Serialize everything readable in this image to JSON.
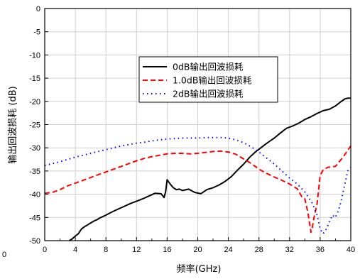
{
  "chart_data": {
    "type": "line",
    "xlabel": "频率(GHz)",
    "ylabel": "输出回波损耗 (dB)",
    "xlim": [
      0,
      40
    ],
    "ylim": [
      -50,
      0
    ],
    "xticks": [
      "0",
      "4",
      "8",
      "12",
      "16",
      "20",
      "24",
      "28",
      "32",
      "36",
      "40"
    ],
    "yticks": [
      "0",
      "-5",
      "-10",
      "-15",
      "-20",
      "-25",
      "-30",
      "-35",
      "-40",
      "-45",
      "-50"
    ],
    "grid": true,
    "legend_position": "center-right",
    "clipped_left_label": "0",
    "series": [
      {
        "name": "0dB输出回波损耗",
        "color": "#000000",
        "dash": "solid",
        "x": [
          3.2,
          3.6,
          4.0,
          4.4,
          4.8,
          5.2,
          5.6,
          6.0,
          6.4,
          6.8,
          7.2,
          7.6,
          8.0,
          8.8,
          9.6,
          10.4,
          11.2,
          12.0,
          12.8,
          13.6,
          14.4,
          15.2,
          15.6,
          15.8,
          16.0,
          16.4,
          16.8,
          17.2,
          17.6,
          18.0,
          18.8,
          19.6,
          20.4,
          21.2,
          22.0,
          22.8,
          23.6,
          24.4,
          25.2,
          26.0,
          26.8,
          27.6,
          28.4,
          29.2,
          30.0,
          30.8,
          31.6,
          32.4,
          33.2,
          34.0,
          34.8,
          35.6,
          36.4,
          37.2,
          38.0,
          38.6,
          39.2,
          39.6,
          40.0
        ],
        "y": [
          -50,
          -49.6,
          -49.0,
          -48.5,
          -47.5,
          -47.0,
          -46.6,
          -46.2,
          -45.8,
          -45.5,
          -45.1,
          -44.8,
          -44.5,
          -43.8,
          -43.2,
          -42.6,
          -42.0,
          -41.5,
          -41.0,
          -40.4,
          -39.8,
          -39.9,
          -40.7,
          -39.5,
          -36.9,
          -37.8,
          -38.6,
          -39.0,
          -38.9,
          -39.2,
          -38.9,
          -39.6,
          -39.9,
          -39.0,
          -38.6,
          -38.0,
          -37.2,
          -36.2,
          -34.8,
          -33.5,
          -32.0,
          -30.8,
          -29.8,
          -28.8,
          -27.9,
          -26.8,
          -25.8,
          -25.3,
          -24.7,
          -23.9,
          -23.3,
          -22.6,
          -22.0,
          -21.7,
          -21.0,
          -20.2,
          -19.5,
          -19.3,
          -19.3
        ]
      },
      {
        "name": "1.0dB输出回波损耗",
        "color": "#ff0000",
        "dash": "dashed",
        "x": [
          0,
          1,
          2,
          3,
          4,
          5,
          6,
          7,
          8,
          9,
          10,
          11,
          12,
          13,
          14,
          15,
          16,
          17,
          18,
          19,
          20,
          21,
          22,
          23,
          24,
          25,
          26,
          27,
          28,
          29,
          30,
          31,
          32,
          33,
          33.6,
          34.0,
          34.4,
          34.8,
          35.0,
          35.2,
          35.6,
          36.0,
          36.4,
          37.0,
          38.0,
          39.0,
          40.0
        ],
        "y": [
          -39.8,
          -39.6,
          -39.0,
          -38.2,
          -37.6,
          -37.0,
          -36.4,
          -35.8,
          -35.2,
          -34.6,
          -34.0,
          -33.4,
          -32.8,
          -32.3,
          -31.9,
          -31.6,
          -31.3,
          -31.2,
          -31.2,
          -31.3,
          -31.2,
          -31.0,
          -30.8,
          -30.7,
          -30.9,
          -31.4,
          -32.4,
          -33.4,
          -34.6,
          -35.5,
          -36.3,
          -37.0,
          -37.8,
          -38.8,
          -40.5,
          -41.0,
          -44.0,
          -48.2,
          -47.0,
          -45.0,
          -42.0,
          -36.0,
          -34.7,
          -34.2,
          -34.0,
          -32.0,
          -29.6
        ]
      },
      {
        "name": "2dB输出回波损耗",
        "color": "#0000ff",
        "dash": "dotted",
        "x": [
          0,
          1,
          2,
          3,
          4,
          5,
          6,
          7,
          8,
          9,
          10,
          11,
          12,
          13,
          14,
          15,
          16,
          17,
          18,
          19,
          20,
          21,
          22,
          23,
          24,
          25,
          26,
          27,
          28,
          29,
          30,
          31,
          32,
          33,
          34,
          35,
          35.6,
          36,
          36.4,
          36.8,
          37.2,
          37.6,
          38,
          38.4,
          38.8,
          39.2,
          39.6,
          40
        ],
        "y": [
          -33.8,
          -33.4,
          -33.0,
          -32.5,
          -32.0,
          -31.6,
          -31.2,
          -30.8,
          -30.4,
          -30.0,
          -29.6,
          -29.3,
          -29.0,
          -28.8,
          -28.5,
          -28.3,
          -28.1,
          -28.0,
          -27.9,
          -27.9,
          -27.9,
          -27.8,
          -27.8,
          -27.8,
          -27.9,
          -28.3,
          -28.9,
          -29.8,
          -30.9,
          -32.2,
          -33.5,
          -35.0,
          -36.5,
          -37.8,
          -39.5,
          -42.0,
          -44.5,
          -47.5,
          -48.5,
          -47.5,
          -46.0,
          -44.5,
          -45.0,
          -43.5,
          -41.0,
          -38.0,
          -35.0,
          -34.2
        ]
      }
    ]
  }
}
